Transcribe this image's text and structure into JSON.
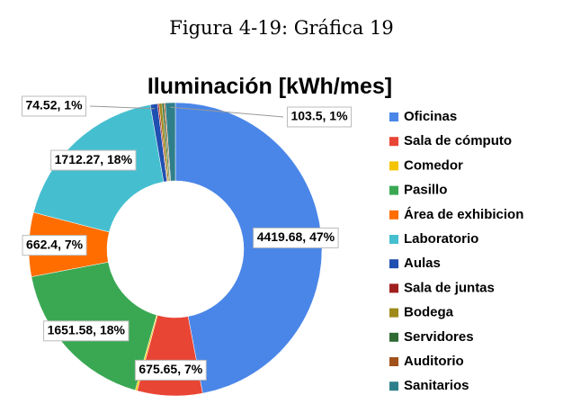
{
  "caption": "Figura 4-19: Gráfica 19",
  "chart_data": {
    "type": "pie",
    "donut": true,
    "title": "Iluminación [kWh/mes]",
    "legend": "right",
    "categories": [
      "Oficinas",
      "Sala de cómputo",
      "Comedor",
      "Pasillo",
      "Área de exhibicion",
      "Laboratorio",
      "Aulas",
      "Sala de juntas",
      "Bodega",
      "Servidores",
      "Auditorio",
      "Sanitarios"
    ],
    "values": [
      4419.68,
      675.65,
      20,
      1651.58,
      662.4,
      1712.27,
      74.52,
      15,
      30,
      20,
      15,
      103.5
    ],
    "value_labels": [
      "4419.68, 47%",
      "675.65, 7%",
      null,
      "1651.58, 18%",
      "662.4, 7%",
      "1712.27, 18%",
      "74.52, 1%",
      null,
      null,
      null,
      null,
      "103.5, 1%"
    ],
    "colors": [
      "#4a86e8",
      "#e84535",
      "#f5c400",
      "#3aa853",
      "#ff6d00",
      "#45bfd0",
      "#1f4fb0",
      "#a01f1f",
      "#9e8a1a",
      "#2e6b33",
      "#a0521a",
      "#2f7f8a"
    ]
  }
}
